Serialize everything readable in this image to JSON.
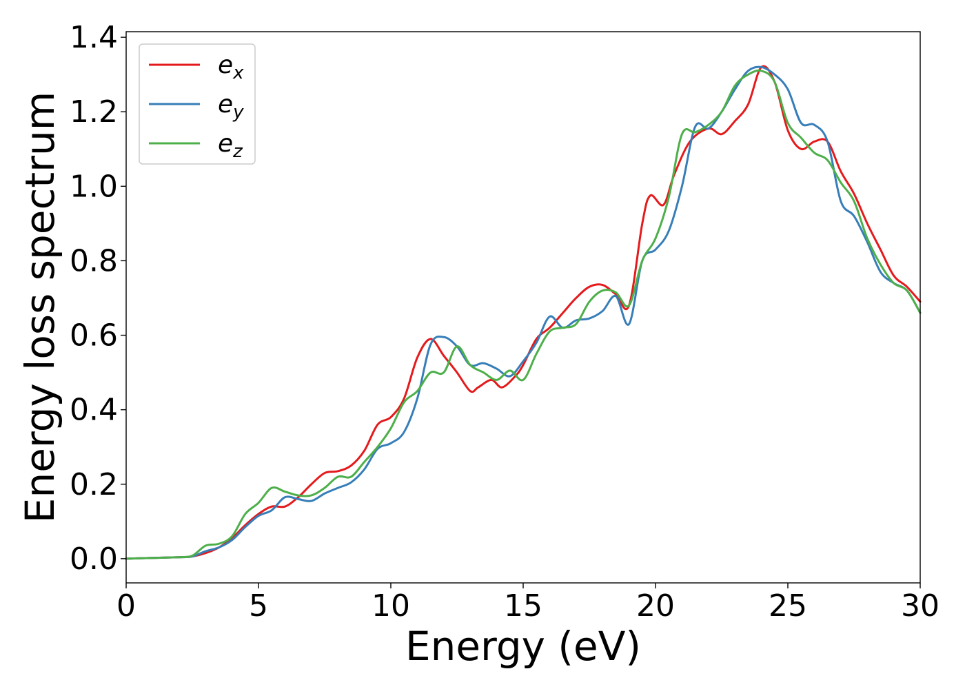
{
  "chart_data": {
    "type": "line",
    "title": "",
    "xlabel": "Energy (eV)",
    "ylabel": "Energy loss spectrum",
    "xlim": [
      0,
      30
    ],
    "ylim": [
      -0.065,
      1.415
    ],
    "xticks": [
      0,
      5,
      10,
      15,
      20,
      25,
      30
    ],
    "yticks": [
      0.0,
      0.2,
      0.4,
      0.6,
      0.8,
      1.0,
      1.2,
      1.4
    ],
    "xtick_labels": [
      "0",
      "5",
      "10",
      "15",
      "20",
      "25",
      "30"
    ],
    "ytick_labels": [
      "0.0",
      "0.2",
      "0.4",
      "0.6",
      "0.8",
      "1.0",
      "1.2",
      "1.4"
    ],
    "grid": false,
    "legend_position": "top-left",
    "series": [
      {
        "name": "e",
        "subscript": "x",
        "color": "#e41a1c",
        "x": [
          0,
          1,
          2,
          2.5,
          3,
          3.5,
          4,
          4.5,
          5,
          5.5,
          6,
          6.5,
          7,
          7.5,
          8,
          8.5,
          9,
          9.5,
          10,
          10.5,
          11,
          11.5,
          12,
          12.5,
          13,
          13.3,
          13.8,
          14.2,
          14.7,
          15,
          15.5,
          16,
          16.5,
          17,
          17.5,
          18,
          18.5,
          19,
          19.5,
          19.8,
          20.3,
          20.7,
          21.3,
          22,
          22.5,
          23,
          23.5,
          24,
          24.5,
          25,
          25.5,
          26,
          26.5,
          27,
          27.5,
          28,
          28.5,
          29,
          29.5,
          30
        ],
        "y": [
          0,
          0.002,
          0.004,
          0.006,
          0.015,
          0.03,
          0.055,
          0.09,
          0.12,
          0.14,
          0.14,
          0.165,
          0.2,
          0.23,
          0.235,
          0.25,
          0.29,
          0.36,
          0.38,
          0.43,
          0.54,
          0.59,
          0.545,
          0.5,
          0.45,
          0.46,
          0.48,
          0.46,
          0.49,
          0.52,
          0.59,
          0.62,
          0.66,
          0.7,
          0.73,
          0.735,
          0.71,
          0.68,
          0.9,
          0.975,
          0.95,
          1.03,
          1.12,
          1.155,
          1.14,
          1.175,
          1.22,
          1.32,
          1.28,
          1.15,
          1.1,
          1.12,
          1.12,
          1.04,
          0.98,
          0.9,
          0.83,
          0.76,
          0.73,
          0.69
        ]
      },
      {
        "name": "e",
        "subscript": "y",
        "color": "#377eb8",
        "x": [
          0,
          1,
          2,
          2.5,
          3,
          3.5,
          4,
          4.5,
          5,
          5.5,
          6,
          6.5,
          7,
          7.5,
          8,
          8.5,
          9,
          9.5,
          10,
          10.5,
          11,
          11.5,
          12,
          12.5,
          13,
          13.5,
          14,
          14.5,
          15,
          15.5,
          16,
          16.5,
          17,
          17.5,
          18,
          18.5,
          19,
          19.5,
          20,
          20.5,
          21,
          21.5,
          22,
          22.5,
          23,
          23.5,
          24,
          24.5,
          25,
          25.5,
          26,
          26.5,
          27,
          27.5,
          28,
          28.5,
          29,
          29.5,
          30
        ],
        "y": [
          0,
          0.002,
          0.004,
          0.006,
          0.02,
          0.03,
          0.05,
          0.085,
          0.115,
          0.13,
          0.165,
          0.16,
          0.155,
          0.175,
          0.19,
          0.205,
          0.24,
          0.295,
          0.31,
          0.34,
          0.43,
          0.575,
          0.595,
          0.57,
          0.52,
          0.525,
          0.51,
          0.49,
          0.53,
          0.58,
          0.65,
          0.62,
          0.64,
          0.645,
          0.665,
          0.705,
          0.63,
          0.8,
          0.83,
          0.88,
          1.0,
          1.16,
          1.155,
          1.2,
          1.26,
          1.31,
          1.32,
          1.3,
          1.26,
          1.17,
          1.165,
          1.12,
          0.96,
          0.92,
          0.85,
          0.77,
          0.74,
          0.72,
          0.66
        ]
      },
      {
        "name": "e",
        "subscript": "z",
        "color": "#4daf4a",
        "x": [
          0,
          1,
          2,
          2.5,
          3,
          3.5,
          4,
          4.5,
          5,
          5.5,
          6,
          6.5,
          7,
          7.5,
          8,
          8.5,
          9,
          9.5,
          10,
          10.5,
          11,
          11.5,
          12,
          12.5,
          13,
          13.5,
          14,
          14.5,
          15,
          15.5,
          16,
          16.5,
          17,
          17.5,
          18,
          18.5,
          19,
          19.5,
          20,
          20.5,
          21,
          21.5,
          22,
          22.5,
          23,
          23.5,
          24,
          24.5,
          25,
          25.5,
          26,
          26.5,
          27,
          27.5,
          28,
          28.5,
          29,
          29.5,
          30
        ],
        "y": [
          0,
          0.002,
          0.004,
          0.008,
          0.035,
          0.04,
          0.06,
          0.12,
          0.15,
          0.19,
          0.18,
          0.17,
          0.17,
          0.19,
          0.22,
          0.22,
          0.26,
          0.3,
          0.35,
          0.42,
          0.45,
          0.5,
          0.5,
          0.57,
          0.52,
          0.5,
          0.48,
          0.505,
          0.48,
          0.55,
          0.61,
          0.62,
          0.63,
          0.69,
          0.72,
          0.715,
          0.68,
          0.8,
          0.86,
          0.97,
          1.14,
          1.145,
          1.165,
          1.2,
          1.27,
          1.3,
          1.31,
          1.28,
          1.17,
          1.13,
          1.09,
          1.07,
          1.01,
          0.96,
          0.86,
          0.79,
          0.74,
          0.72,
          0.66
        ]
      }
    ]
  }
}
